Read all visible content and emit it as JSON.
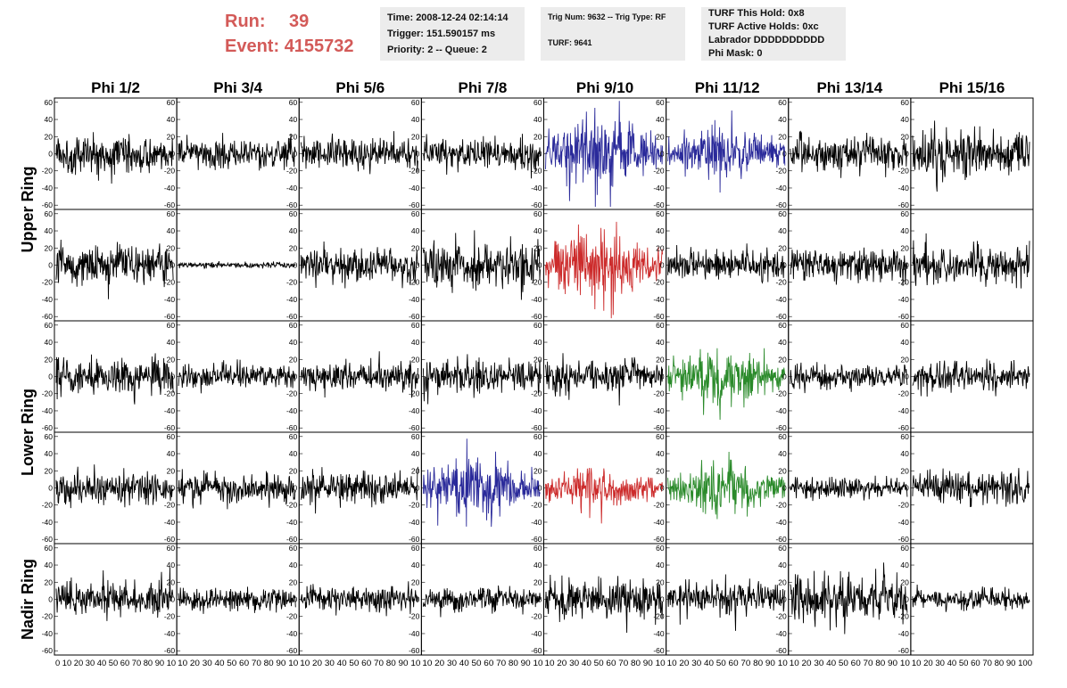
{
  "header": {
    "run_label": "Run:",
    "run_value": "39",
    "event_label": "Event:",
    "event_value": "4155732",
    "box1": {
      "time": "Time: 2008-12-24 02:14:14",
      "trigger": "Trigger: 151.590157 ms",
      "priority": "Priority: 2 -- Queue: 2"
    },
    "box2": {
      "trig": "Trig Num: 9632 -- Trig Type: RF",
      "turf": "TURF: 9641"
    },
    "box3": {
      "hold": "TURF This Hold: 0x8",
      "active": "TURF Active Holds: 0xc",
      "labrador": "Labrador DDDDDDDDDD",
      "mask": "Phi Mask: 0"
    }
  },
  "columns": [
    "Phi 1/2",
    "Phi 3/4",
    "Phi 5/6",
    "Phi 7/8",
    "Phi 9/10",
    "Phi 11/12",
    "Phi 13/14",
    "Phi 15/16"
  ],
  "row_labels": [
    "Upper Ring",
    "Lower Ring",
    "Nadir Ring"
  ],
  "colors": {
    "black": "#000000",
    "blue": "#2a2a9a",
    "red": "#cc2b2b",
    "green": "#2a8a2a",
    "header_red": "#d35a58",
    "box_bg": "#ececec"
  },
  "chart_data": {
    "type": "line",
    "description_grid": "5 rows x 8 columns of waveform panels",
    "ylim": [
      -65,
      65
    ],
    "y_ticks": [
      "60",
      "40",
      "20",
      "0",
      "-20",
      "-40",
      "-60"
    ],
    "xlim": [
      0,
      100
    ],
    "x_tick_text": [
      "0 10 20 30 40 50 60 70 80 90 10",
      "10 20 30 40 50 60 70 80 90 10",
      "10 20 30 40 50 60 70 80 90 10",
      "10 20 30 40 50 60 70 80 90 10",
      "10 20 30 40 50 60 70 80 90 10",
      "10 20 30 40 50 60 70 80 90 10",
      "10 20 30 40 50 60 70 80 90 10",
      "10 20 30 40 50 60 70 80 90 100"
    ],
    "panel_colors": [
      [
        "black",
        "black",
        "black",
        "black",
        "blue",
        "blue",
        "black",
        "black"
      ],
      [
        "black",
        "black",
        "black",
        "black",
        "red",
        "black",
        "black",
        "black"
      ],
      [
        "black",
        "black",
        "black",
        "black",
        "black",
        "green",
        "black",
        "black"
      ],
      [
        "black",
        "black",
        "black",
        "blue",
        "red",
        "green",
        "black",
        "black"
      ],
      [
        "black",
        "black",
        "black",
        "black",
        "black",
        "black",
        "black",
        "black"
      ]
    ],
    "panel_amplitude": [
      [
        18,
        14,
        16,
        16,
        30,
        20,
        17,
        22
      ],
      [
        18,
        3,
        16,
        22,
        28,
        14,
        15,
        18
      ],
      [
        17,
        12,
        14,
        16,
        16,
        22,
        12,
        14
      ],
      [
        15,
        14,
        16,
        24,
        16,
        22,
        10,
        16
      ],
      [
        17,
        11,
        12,
        11,
        20,
        15,
        22,
        10
      ]
    ]
  }
}
